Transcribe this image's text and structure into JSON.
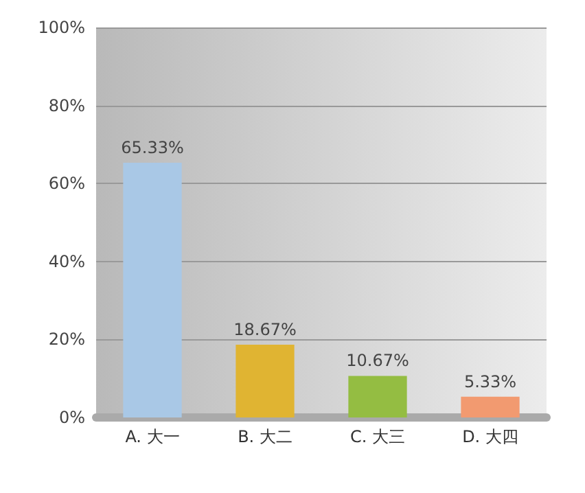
{
  "chart_data": {
    "type": "bar",
    "categories": [
      "A. 大一",
      "B. 大二",
      "C. 大三",
      "D. 大四"
    ],
    "values": [
      65.33,
      18.67,
      10.67,
      5.33
    ],
    "colors": [
      "#a9c8e6",
      "#e0b432",
      "#94bd42",
      "#f29a70"
    ],
    "value_labels": [
      "65.33%",
      "18.67%",
      "10.67%",
      "5.33%"
    ],
    "ylim": [
      0,
      100
    ],
    "yticks": [
      {
        "value": 0,
        "label": "0%"
      },
      {
        "value": 20,
        "label": "20%"
      },
      {
        "value": 40,
        "label": "40%"
      },
      {
        "value": 60,
        "label": "60%"
      },
      {
        "value": 80,
        "label": "80%"
      },
      {
        "value": 100,
        "label": "100%"
      }
    ],
    "grid": "y"
  }
}
